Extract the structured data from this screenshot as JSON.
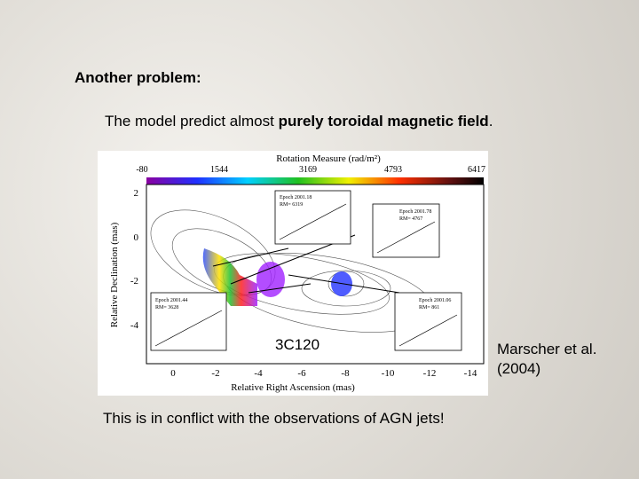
{
  "title": "Another problem:",
  "bullet": {
    "before": "The model predict almost ",
    "bold": "purely toroidal magnetic field",
    "after": "."
  },
  "figure": {
    "colorbar_title": "Rotation Measure (rad/m²)",
    "colorbar_ticks": [
      "-80",
      "1544",
      "3169",
      "4793",
      "6417"
    ],
    "y_label": "Relative Declination (mas)",
    "y_ticks": [
      "2",
      "0",
      "-2",
      "-4"
    ],
    "x_label": "Relative Right Ascension (mas)",
    "x_ticks": [
      "0",
      "-2",
      "-4",
      "-6",
      "-8",
      "-10",
      "-12",
      "-14"
    ],
    "insets": [
      {
        "epoch": "Epoch 2001.18",
        "rm": "RM= 6319"
      },
      {
        "epoch": "Epoch 2001.78",
        "rm": "RM= 4767"
      },
      {
        "epoch": "Epoch 2001.44",
        "rm": "RM= 3628"
      },
      {
        "epoch": "Epoch 2001.06",
        "rm": "RM= 861"
      }
    ]
  },
  "source_label": "3C120",
  "conclusion": "This is in conflict with the observations of AGN jets!",
  "citation": [
    "Marscher et al.",
    "(2004)"
  ]
}
